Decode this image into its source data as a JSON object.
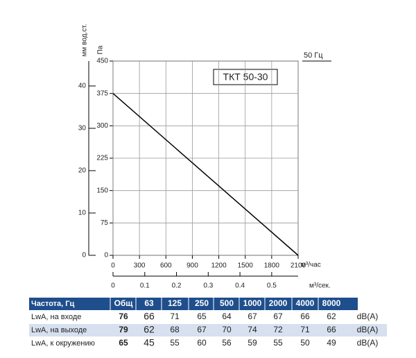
{
  "chart_data": {
    "type": "line",
    "annotation": "ТКТ 50-30",
    "frequency_label": "50 Гц",
    "x_label": "м³/час",
    "x2_label": "м³/сек.",
    "y_label": "Па",
    "y2_label": "мм вод.ст.",
    "x": [
      0,
      2100
    ],
    "series": [
      {
        "color": "#000000",
        "values": [
          375,
          0
        ]
      }
    ],
    "xlim": [
      0,
      2100
    ],
    "xticks": [
      0,
      300,
      600,
      900,
      1200,
      1500,
      1800,
      2100
    ],
    "x2lim": [
      0,
      0.5833
    ],
    "x2ticks": [
      0,
      0.1,
      0.2,
      0.3,
      0.4,
      0.5
    ],
    "ylim": [
      0,
      450
    ],
    "yticks": [
      0,
      75,
      150,
      225,
      300,
      375,
      450
    ],
    "y2lim": [
      0,
      45.89
    ],
    "y2ticks": [
      0,
      10,
      20,
      30,
      40
    ],
    "grid": true
  },
  "table": {
    "header": [
      "Частота, Гц",
      "Общ",
      "63",
      "125",
      "250",
      "500",
      "1000",
      "2000",
      "4000",
      "8000"
    ],
    "rows": [
      {
        "label": "LwA, на входе",
        "values": [
          76,
          66,
          71,
          65,
          64,
          67,
          67,
          66,
          62
        ],
        "unit": "dB(A)"
      },
      {
        "label": "LwA, на выходе",
        "values": [
          79,
          62,
          68,
          67,
          70,
          74,
          72,
          71,
          66
        ],
        "unit": "dB(A)"
      },
      {
        "label": "LwA, к окружению",
        "values": [
          65,
          45,
          55,
          60,
          56,
          59,
          55,
          50,
          49
        ],
        "unit": "dB(A)"
      }
    ]
  }
}
